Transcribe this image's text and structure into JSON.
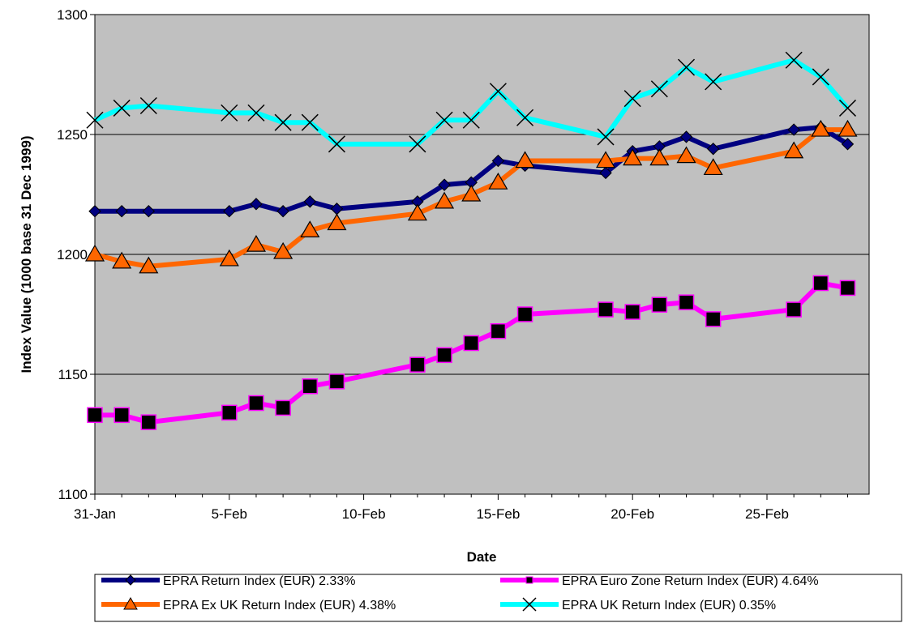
{
  "chart_data": {
    "type": "line",
    "xlabel": "Date",
    "ylabel": "Index Value (1000 base 31 Dec 1999)",
    "x_tick_labels": [
      "31-Jan",
      "5-Feb",
      "10-Feb",
      "15-Feb",
      "20-Feb",
      "25-Feb"
    ],
    "x_tick_days": [
      0,
      5,
      10,
      15,
      20,
      25
    ],
    "xlim": [
      0,
      28.8
    ],
    "ylim": [
      1100,
      1300
    ],
    "y_ticks": [
      1100,
      1150,
      1200,
      1250,
      1300
    ],
    "grid": true,
    "legend_position": "bottom",
    "plot_background": "#c0c0c0",
    "x_days": [
      0,
      1,
      2,
      5,
      6,
      7,
      8,
      9,
      12,
      13,
      14,
      15,
      16,
      19,
      20,
      21,
      22,
      23,
      26,
      27,
      28
    ],
    "series": [
      {
        "name": "EPRA Return Index (EUR) 2.33%",
        "color": "#000080",
        "marker": "diamond",
        "values": [
          1218,
          1218,
          1218,
          1218,
          1221,
          1218,
          1222,
          1219,
          1222,
          1229,
          1230,
          1239,
          1237,
          1234,
          1243,
          1245,
          1249,
          1244,
          1252,
          1253,
          1246
        ]
      },
      {
        "name": "EPRA Euro Zone Return Index (EUR) 4.64%",
        "color": "#ff00ff",
        "marker": "square",
        "values": [
          1133,
          1133,
          1130,
          1134,
          1138,
          1136,
          1145,
          1147,
          1154,
          1158,
          1163,
          1168,
          1175,
          1177,
          1176,
          1179,
          1180,
          1173,
          1177,
          1188,
          1186
        ]
      },
      {
        "name": "EPRA Ex UK Return Index (EUR) 4.38%",
        "color": "#ff6600",
        "marker": "triangle",
        "values": [
          1200,
          1197,
          1195,
          1198,
          1204,
          1201,
          1210,
          1213,
          1217,
          1222,
          1225,
          1230,
          1239,
          1239,
          1240,
          1240,
          1241,
          1236,
          1243,
          1252,
          1252
        ]
      },
      {
        "name": "EPRA UK Return Index (EUR) 0.35%",
        "color": "#00ffff",
        "marker": "x",
        "values": [
          1256,
          1261,
          1262,
          1259,
          1259,
          1255,
          1255,
          1246,
          1246,
          1256,
          1256,
          1268,
          1257,
          1249,
          1265,
          1269,
          1278,
          1272,
          1281,
          1274,
          1261
        ]
      }
    ]
  }
}
